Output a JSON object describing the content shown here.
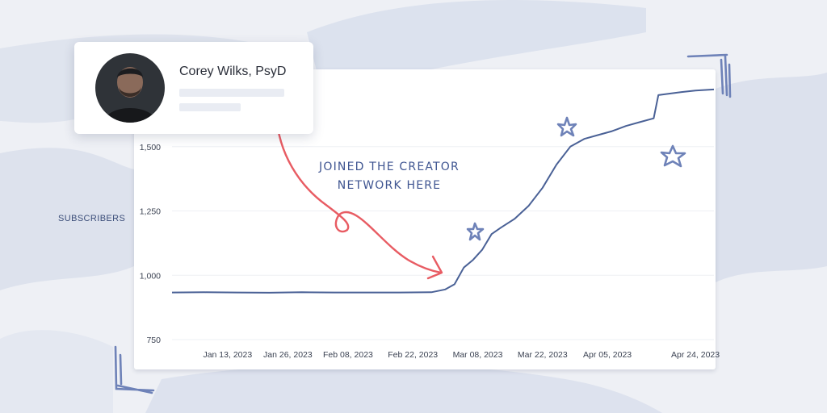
{
  "profile": {
    "name": "Corey Wilks, PsyD"
  },
  "annotation": {
    "lines": [
      "JOINED THE CREATOR",
      "NETWORK HERE"
    ]
  },
  "colors": {
    "line": "#4a6196",
    "arrow": "#e85c63",
    "decoration": "#6e82b8",
    "background": "#eef0f5"
  },
  "chart_data": {
    "type": "line",
    "title": "",
    "xlabel": "",
    "ylabel": "SUBSCRIBERS",
    "ylim": [
      750,
      1750
    ],
    "yticks": [
      750,
      1000,
      1250,
      1500
    ],
    "ytick_labels": [
      "750",
      "1,000",
      "1,250",
      "1,500"
    ],
    "grid": true,
    "xlim": [
      "2023-01-01",
      "2023-04-28"
    ],
    "xticks": [
      "2023-01-13",
      "2023-01-26",
      "2023-02-08",
      "2023-02-22",
      "2023-03-08",
      "2023-03-22",
      "2023-04-05",
      "2023-04-24"
    ],
    "xtick_labels": [
      "Jan 13, 2023",
      "Jan 26, 2023",
      "Feb 08, 2023",
      "Feb 22, 2023",
      "Mar 08, 2023",
      "Mar 22, 2023",
      "Apr 05, 2023",
      "Apr 24, 2023"
    ],
    "series": [
      {
        "x": [
          "2023-01-01",
          "2023-01-08",
          "2023-01-15",
          "2023-01-22",
          "2023-01-29",
          "2023-02-05",
          "2023-02-12",
          "2023-02-19",
          "2023-02-26",
          "2023-03-01",
          "2023-03-03",
          "2023-03-05",
          "2023-03-07",
          "2023-03-09",
          "2023-03-11",
          "2023-03-13",
          "2023-03-16",
          "2023-03-19",
          "2023-03-22",
          "2023-03-25",
          "2023-03-28",
          "2023-03-31",
          "2023-04-03",
          "2023-04-06",
          "2023-04-09",
          "2023-04-12",
          "2023-04-15",
          "2023-04-16",
          "2023-04-18",
          "2023-04-21",
          "2023-04-24",
          "2023-04-28"
        ],
        "values": [
          933,
          934,
          933,
          932,
          934,
          933,
          933,
          933,
          934,
          945,
          965,
          1030,
          1060,
          1100,
          1160,
          1185,
          1220,
          1270,
          1340,
          1430,
          1500,
          1530,
          1545,
          1560,
          1580,
          1595,
          1610,
          1700,
          1705,
          1712,
          1718,
          1722
        ]
      }
    ]
  }
}
